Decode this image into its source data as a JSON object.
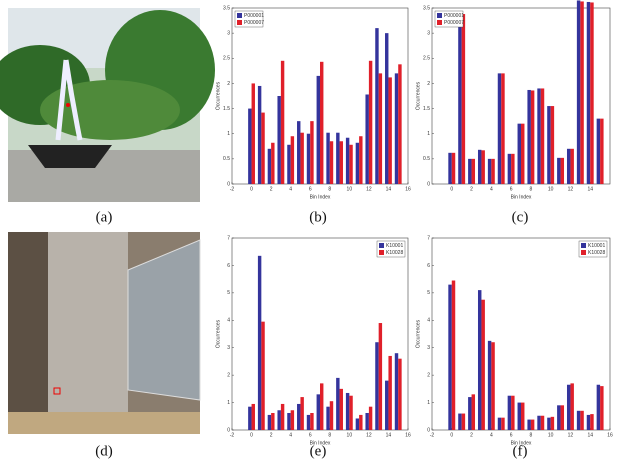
{
  "captions": [
    "(a)",
    "(b)",
    "(c)",
    "(d)",
    "(e)",
    "(f)"
  ],
  "chart_data": [
    {
      "type": "bar",
      "xlabel": "Bin Index",
      "ylabel": "Occurrences",
      "legend": "upper left",
      "x": [
        0,
        1,
        2,
        3,
        4,
        5,
        6,
        7,
        8,
        9,
        10,
        11,
        12,
        13,
        14,
        15
      ],
      "xlim": [
        -2,
        16
      ],
      "xticks": [
        -2,
        0,
        2,
        4,
        6,
        8,
        10,
        12,
        14,
        16
      ],
      "ylim": [
        0,
        3.5
      ],
      "yticks": [
        0,
        0.5,
        1,
        1.5,
        2,
        2.5,
        3,
        3.5
      ],
      "series": [
        {
          "name": "P000001",
          "color": "#34349c",
          "values": [
            1.5,
            1.95,
            0.7,
            1.75,
            0.78,
            1.25,
            1.0,
            2.15,
            1.02,
            1.02,
            0.92,
            0.82,
            1.78,
            3.1,
            3.0,
            2.2
          ]
        },
        {
          "name": "P000007",
          "color": "#e0202a",
          "values": [
            2.0,
            1.42,
            0.82,
            2.45,
            0.95,
            1.02,
            1.25,
            2.43,
            0.85,
            0.85,
            0.78,
            0.95,
            2.45,
            2.2,
            2.12,
            2.38
          ]
        }
      ]
    },
    {
      "type": "bar",
      "xlabel": "Bin Index",
      "ylabel": "Occurrences",
      "legend": "upper left",
      "x": [
        0,
        1,
        2,
        3,
        4,
        5,
        6,
        7,
        8,
        9,
        10,
        11,
        12,
        13,
        14,
        15
      ],
      "xlim": [
        -2,
        16
      ],
      "xticks": [
        0,
        2,
        4,
        6,
        8,
        10,
        12,
        14
      ],
      "ylim": [
        0,
        3.5
      ],
      "yticks": [
        0,
        0.5,
        1,
        1.5,
        2,
        2.5,
        3,
        3.5
      ],
      "series": [
        {
          "name": "P000001",
          "color": "#34349c",
          "values": [
            0.62,
            3.4,
            0.5,
            0.68,
            0.5,
            2.2,
            0.6,
            1.2,
            1.87,
            1.9,
            1.55,
            0.52,
            0.7,
            3.65,
            3.62,
            1.3
          ]
        },
        {
          "name": "P000007",
          "color": "#e0202a",
          "values": [
            0.62,
            3.38,
            0.5,
            0.67,
            0.5,
            2.2,
            0.6,
            1.2,
            1.86,
            1.9,
            1.55,
            0.52,
            0.7,
            3.63,
            3.61,
            1.3
          ]
        }
      ]
    },
    {
      "type": "bar",
      "xlabel": "Bin Index",
      "ylabel": "Occurrences",
      "legend": "upper right",
      "x": [
        0,
        1,
        2,
        3,
        4,
        5,
        6,
        7,
        8,
        9,
        10,
        11,
        12,
        13,
        14,
        15
      ],
      "xlim": [
        -2,
        16
      ],
      "xticks": [
        -2,
        0,
        2,
        4,
        6,
        8,
        10,
        12,
        14,
        16
      ],
      "ylim": [
        0,
        7
      ],
      "yticks": [
        0,
        1,
        2,
        3,
        4,
        5,
        6,
        7
      ],
      "series": [
        {
          "name": "K10001",
          "color": "#34349c",
          "values": [
            0.85,
            6.35,
            0.55,
            0.72,
            0.62,
            0.95,
            0.55,
            1.3,
            0.85,
            1.9,
            1.35,
            0.42,
            0.62,
            3.2,
            1.8,
            2.8
          ]
        },
        {
          "name": "K10028",
          "color": "#e0202a",
          "values": [
            0.95,
            3.95,
            0.62,
            0.95,
            0.72,
            1.2,
            0.62,
            1.7,
            1.05,
            1.5,
            1.25,
            0.55,
            0.85,
            3.9,
            2.7,
            2.6
          ]
        }
      ]
    },
    {
      "type": "bar",
      "xlabel": "Bin Index",
      "ylabel": "Occurrences",
      "legend": "upper right",
      "x": [
        0,
        1,
        2,
        3,
        4,
        5,
        6,
        7,
        8,
        9,
        10,
        11,
        12,
        13,
        14,
        15
      ],
      "xlim": [
        -2,
        16
      ],
      "xticks": [
        -2,
        0,
        2,
        4,
        6,
        8,
        10,
        12,
        14,
        16
      ],
      "ylim": [
        0,
        7
      ],
      "yticks": [
        0,
        1,
        2,
        3,
        4,
        5,
        6,
        7
      ],
      "series": [
        {
          "name": "K10001",
          "color": "#34349c",
          "values": [
            5.3,
            0.6,
            1.2,
            5.1,
            3.25,
            0.45,
            1.25,
            1.0,
            0.38,
            0.52,
            0.45,
            0.9,
            1.65,
            0.7,
            0.55,
            1.65
          ]
        },
        {
          "name": "K10028",
          "color": "#e0202a",
          "values": [
            5.45,
            0.6,
            1.3,
            4.75,
            3.2,
            0.45,
            1.25,
            1.0,
            0.38,
            0.52,
            0.48,
            0.9,
            1.7,
            0.7,
            0.58,
            1.6
          ]
        }
      ]
    }
  ]
}
